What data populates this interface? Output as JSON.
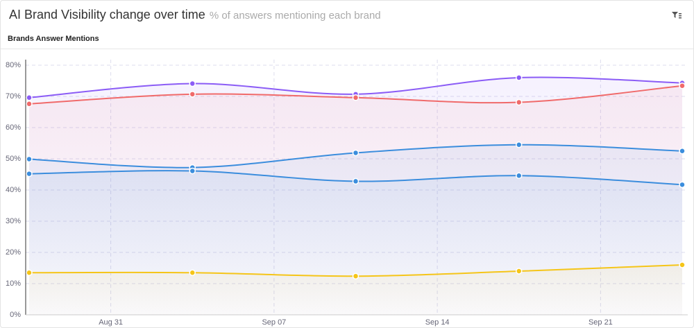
{
  "header": {
    "title": "AI Brand Visibility change over time",
    "subtitle": "% of answers mentioning each brand"
  },
  "section": "Brands Answer Mentions",
  "chart_data": {
    "type": "line",
    "categories": [
      null,
      null,
      null,
      null,
      null
    ],
    "xlim": [
      0,
      4
    ],
    "xticks": [
      {
        "value": 0.5,
        "label": "Aug 31"
      },
      {
        "value": 1.5,
        "label": "Sep 07"
      },
      {
        "value": 2.5,
        "label": "Sep 14"
      },
      {
        "value": 3.5,
        "label": "Sep 21"
      }
    ],
    "ylim": [
      0,
      80
    ],
    "yticks": [
      {
        "value": 0,
        "label": "0%"
      },
      {
        "value": 10,
        "label": "10%"
      },
      {
        "value": 20,
        "label": "20%"
      },
      {
        "value": 30,
        "label": "30%"
      },
      {
        "value": 40,
        "label": "40%"
      },
      {
        "value": 50,
        "label": "50%"
      },
      {
        "value": 60,
        "label": "60%"
      },
      {
        "value": 70,
        "label": "70%"
      },
      {
        "value": 80,
        "label": "80%"
      }
    ],
    "grid": true,
    "series": [
      {
        "color": "#8b5cf6",
        "values": [
          69.6,
          74.1,
          70.7,
          76.0,
          74.3
        ]
      },
      {
        "color": "#f06a6a",
        "values": [
          67.6,
          70.7,
          69.6,
          68.1,
          73.4
        ]
      },
      {
        "color": "#3b8ddd",
        "values": [
          49.9,
          47.2,
          51.9,
          54.5,
          52.5
        ]
      },
      {
        "color": "#3b8ddd",
        "values": [
          45.2,
          46.1,
          42.8,
          44.6,
          41.7
        ]
      },
      {
        "color": "#f5c518",
        "values": [
          13.5,
          13.5,
          12.4,
          14.0,
          16.0
        ]
      }
    ]
  }
}
